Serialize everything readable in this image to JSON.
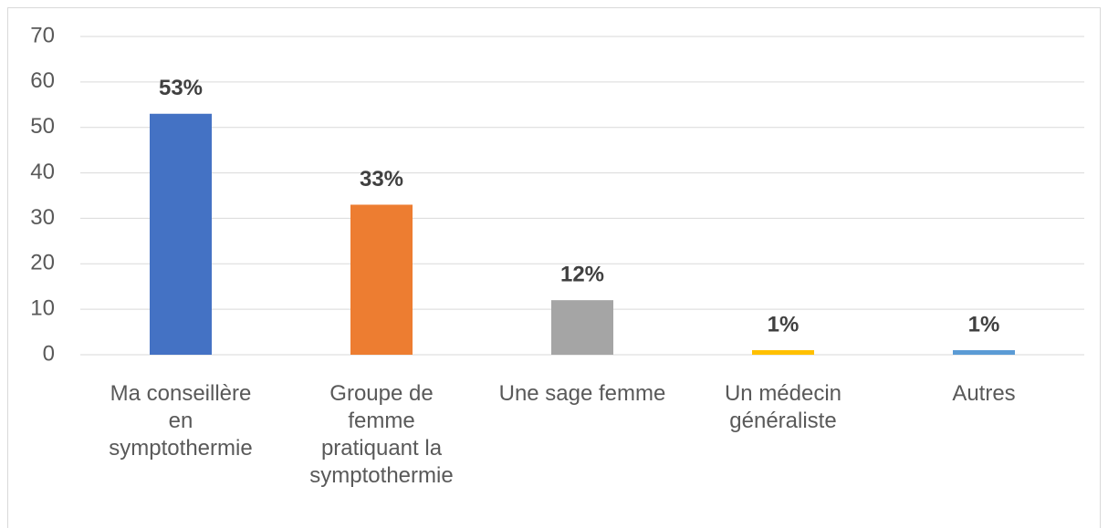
{
  "chart_data": {
    "type": "bar",
    "categories": [
      "Ma conseillère en symptothermie",
      "Groupe de femme pratiquant la symptothermie",
      "Une sage femme",
      "Un médecin généraliste",
      "Autres"
    ],
    "values": [
      53,
      33,
      12,
      1,
      1
    ],
    "value_labels": [
      "53%",
      "33%",
      "12%",
      "1%",
      "1%"
    ],
    "colors": [
      "#4472c4",
      "#ed7d31",
      "#a5a5a5",
      "#ffc000",
      "#5b9bd5"
    ],
    "ylim": [
      0,
      70
    ],
    "yticks": [
      0,
      10,
      20,
      30,
      40,
      50,
      60,
      70
    ],
    "grid": true
  }
}
